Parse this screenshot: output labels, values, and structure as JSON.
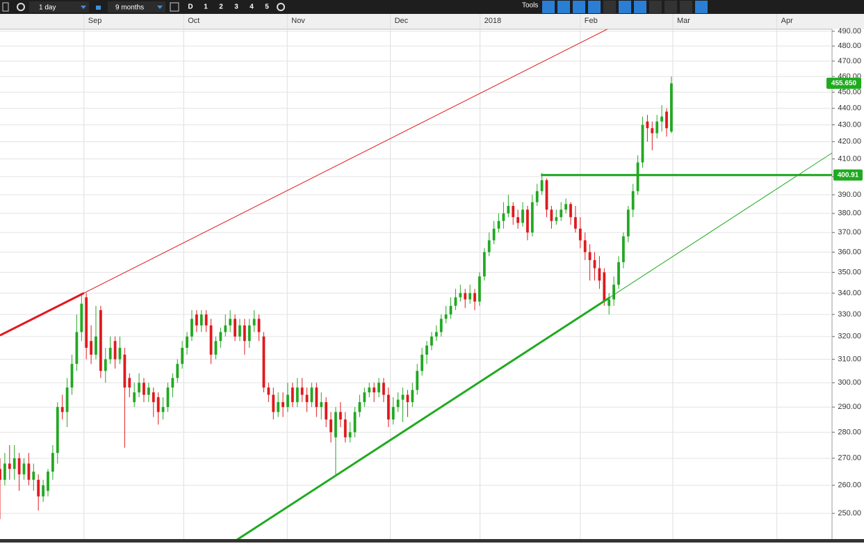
{
  "toolbar": {
    "interval": "1 day",
    "range": "9 months",
    "buttons": [
      "D",
      "1",
      "2",
      "3",
      "4",
      "5"
    ],
    "tools": "Tools"
  },
  "chart_data": {
    "type": "candlestick",
    "up_color": "#22a822",
    "down_color": "#e0191d",
    "log_scale": true,
    "grid": true,
    "xlim": [
      0,
      173.5
    ],
    "xticks": [
      {
        "value": 17.5,
        "label": "Sep"
      },
      {
        "value": 38.3,
        "label": "Oct"
      },
      {
        "value": 59.9,
        "label": "Nov"
      },
      {
        "value": 81.4,
        "label": "Dec"
      },
      {
        "value": 100.1,
        "label": "2018"
      },
      {
        "value": 121,
        "label": "Feb"
      },
      {
        "value": 140.3,
        "label": "Mar"
      },
      {
        "value": 162,
        "label": "Apr"
      }
    ],
    "ylim": [
      241.2,
      491.4
    ],
    "yticks": [
      {
        "value": 250,
        "label": "250.00"
      },
      {
        "value": 260,
        "label": "260.00"
      },
      {
        "value": 270,
        "label": "270.00"
      },
      {
        "value": 280,
        "label": "280.00"
      },
      {
        "value": 290,
        "label": "290.00"
      },
      {
        "value": 300,
        "label": "300.00"
      },
      {
        "value": 310,
        "label": "310.00"
      },
      {
        "value": 320,
        "label": "320.00"
      },
      {
        "value": 330,
        "label": "330.00"
      },
      {
        "value": 340,
        "label": "340.00"
      },
      {
        "value": 350,
        "label": "350.00"
      },
      {
        "value": 360,
        "label": "360.00"
      },
      {
        "value": 370,
        "label": "370.00"
      },
      {
        "value": 380,
        "label": "380.00"
      },
      {
        "value": 390,
        "label": "390.00"
      },
      {
        "value": 400,
        "label": "400.00"
      },
      {
        "value": 410,
        "label": "410.00"
      },
      {
        "value": 420,
        "label": "420.00"
      },
      {
        "value": 430,
        "label": "430.00"
      },
      {
        "value": 440,
        "label": "440.00"
      },
      {
        "value": 450,
        "label": "450.00"
      },
      {
        "value": 460,
        "label": "460.00"
      },
      {
        "value": 470,
        "label": "470.00"
      },
      {
        "value": 480,
        "label": "480.00"
      },
      {
        "value": 490,
        "label": "490.00"
      }
    ],
    "ohlc": [
      [
        266,
        270,
        248,
        262
      ],
      [
        262,
        272,
        260,
        268
      ],
      [
        268,
        275,
        262,
        266
      ],
      [
        266,
        275,
        262,
        270
      ],
      [
        270,
        272,
        258,
        264
      ],
      [
        264,
        270,
        262,
        268
      ],
      [
        268,
        272,
        260,
        262
      ],
      [
        262,
        268,
        258,
        265
      ],
      [
        262,
        264,
        251,
        256
      ],
      [
        256,
        262,
        254,
        260
      ],
      [
        258,
        266,
        256,
        265
      ],
      [
        265,
        275,
        262,
        272
      ],
      [
        272,
        292,
        268,
        290
      ],
      [
        290,
        295,
        285,
        288
      ],
      [
        288,
        302,
        282,
        298
      ],
      [
        298,
        312,
        295,
        308
      ],
      [
        308,
        330,
        305,
        322
      ],
      [
        322,
        340,
        318,
        335
      ],
      [
        338,
        340,
        310,
        315
      ],
      [
        318,
        325,
        308,
        312
      ],
      [
        312,
        334,
        310,
        320
      ],
      [
        332,
        334,
        302,
        305
      ],
      [
        305,
        315,
        300,
        310
      ],
      [
        310,
        320,
        308,
        315
      ],
      [
        318,
        320,
        306,
        310
      ],
      [
        310,
        320,
        308,
        315
      ],
      [
        312,
        315,
        274,
        298
      ],
      [
        302,
        304,
        294,
        298
      ],
      [
        292,
        300,
        290,
        296
      ],
      [
        296,
        304,
        294,
        300
      ],
      [
        300,
        302,
        292,
        295
      ],
      [
        295,
        300,
        292,
        298
      ],
      [
        296,
        298,
        286,
        292
      ],
      [
        294,
        296,
        283,
        288
      ],
      [
        288,
        294,
        285,
        290
      ],
      [
        290,
        300,
        288,
        298
      ],
      [
        298,
        304,
        294,
        302
      ],
      [
        302,
        310,
        300,
        308
      ],
      [
        308,
        318,
        306,
        315
      ],
      [
        315,
        322,
        312,
        320
      ],
      [
        320,
        332,
        318,
        328
      ],
      [
        330,
        332,
        322,
        325
      ],
      [
        325,
        332,
        322,
        330
      ],
      [
        330,
        332,
        322,
        325
      ],
      [
        325,
        328,
        308,
        312
      ],
      [
        312,
        320,
        310,
        318
      ],
      [
        318,
        324,
        315,
        322
      ],
      [
        322,
        330,
        320,
        325
      ],
      [
        325,
        332,
        322,
        328
      ],
      [
        328,
        330,
        318,
        320
      ],
      [
        320,
        328,
        318,
        325
      ],
      [
        325,
        328,
        312,
        318
      ],
      [
        318,
        328,
        315,
        325
      ],
      [
        325,
        332,
        322,
        328
      ],
      [
        328,
        330,
        318,
        322
      ],
      [
        320,
        322,
        296,
        298
      ],
      [
        298,
        300,
        292,
        295
      ],
      [
        295,
        298,
        285,
        288
      ],
      [
        288,
        296,
        286,
        292
      ],
      [
        292,
        296,
        286,
        290
      ],
      [
        290,
        300,
        288,
        295
      ],
      [
        298,
        300,
        290,
        292
      ],
      [
        292,
        302,
        290,
        298
      ],
      [
        298,
        302,
        292,
        295
      ],
      [
        295,
        298,
        288,
        292
      ],
      [
        292,
        300,
        290,
        298
      ],
      [
        298,
        300,
        286,
        290
      ],
      [
        290,
        296,
        285,
        292
      ],
      [
        292,
        294,
        282,
        285
      ],
      [
        285,
        288,
        276,
        280
      ],
      [
        278,
        290,
        264,
        288
      ],
      [
        288,
        292,
        282,
        285
      ],
      [
        285,
        288,
        276,
        278
      ],
      [
        278,
        284,
        276,
        280
      ],
      [
        280,
        290,
        278,
        288
      ],
      [
        288,
        295,
        286,
        292
      ],
      [
        292,
        298,
        290,
        296
      ],
      [
        296,
        300,
        294,
        298
      ],
      [
        298,
        300,
        292,
        296
      ],
      [
        296,
        302,
        294,
        300
      ],
      [
        300,
        302,
        292,
        295
      ],
      [
        295,
        298,
        282,
        285
      ],
      [
        285,
        294,
        283,
        290
      ],
      [
        290,
        296,
        288,
        293
      ],
      [
        293,
        298,
        284,
        295
      ],
      [
        295,
        297,
        286,
        292
      ],
      [
        292,
        300,
        290,
        297
      ],
      [
        297,
        308,
        295,
        305
      ],
      [
        305,
        315,
        303,
        312
      ],
      [
        312,
        318,
        308,
        316
      ],
      [
        316,
        322,
        314,
        320
      ],
      [
        320,
        325,
        318,
        322
      ],
      [
        322,
        330,
        320,
        328
      ],
      [
        328,
        334,
        326,
        330
      ],
      [
        330,
        338,
        328,
        334
      ],
      [
        334,
        342,
        332,
        338
      ],
      [
        338,
        344,
        336,
        340
      ],
      [
        340,
        342,
        333,
        337
      ],
      [
        337,
        344,
        335,
        340
      ],
      [
        340,
        342,
        332,
        336
      ],
      [
        336,
        350,
        334,
        348
      ],
      [
        348,
        362,
        346,
        360
      ],
      [
        360,
        370,
        358,
        366
      ],
      [
        366,
        376,
        364,
        372
      ],
      [
        372,
        380,
        370,
        376
      ],
      [
        376,
        386,
        372,
        380
      ],
      [
        380,
        390,
        378,
        384
      ],
      [
        384,
        386,
        374,
        378
      ],
      [
        378,
        382,
        372,
        375
      ],
      [
        375,
        386,
        373,
        382
      ],
      [
        382,
        384,
        366,
        370
      ],
      [
        370,
        390,
        368,
        386
      ],
      [
        386,
        396,
        384,
        392
      ],
      [
        392,
        402,
        390,
        398
      ],
      [
        398,
        399,
        378,
        382
      ],
      [
        382,
        384,
        372,
        376
      ],
      [
        376,
        382,
        374,
        378
      ],
      [
        378,
        386,
        376,
        382
      ],
      [
        382,
        388,
        380,
        385
      ],
      [
        385,
        386,
        374,
        378
      ],
      [
        378,
        384,
        370,
        372
      ],
      [
        372,
        378,
        362,
        366
      ],
      [
        366,
        370,
        356,
        360
      ],
      [
        360,
        364,
        346,
        356
      ],
      [
        356,
        360,
        346,
        352
      ],
      [
        352,
        358,
        342,
        346
      ],
      [
        350,
        352,
        334,
        336
      ],
      [
        334,
        340,
        330,
        337
      ],
      [
        337,
        348,
        334,
        344
      ],
      [
        344,
        358,
        342,
        355
      ],
      [
        355,
        370,
        352,
        368
      ],
      [
        368,
        384,
        365,
        382
      ],
      [
        382,
        396,
        378,
        392
      ],
      [
        392,
        412,
        390,
        408
      ],
      [
        408,
        435,
        405,
        430
      ],
      [
        432,
        436,
        420,
        428
      ],
      [
        428,
        432,
        415,
        425
      ],
      [
        425,
        436,
        422,
        432
      ],
      [
        432,
        442,
        426,
        435
      ],
      [
        438,
        440,
        423,
        428
      ],
      [
        426,
        460,
        425,
        455.65
      ]
    ],
    "trendlines": [
      {
        "color": "#e0191d",
        "points": [
          [
            0,
            320.5
          ],
          [
            17.5,
            340
          ]
        ]
      },
      {
        "color": "#1faa1f",
        "points": [
          [
            48.5,
            240
          ],
          [
            127.2,
            338
          ]
        ]
      }
    ],
    "level": {
      "value": 400.91,
      "label": "400.91",
      "start": 112.8,
      "color": "#1faa1f"
    },
    "last_price": {
      "value": 455.65,
      "label": "455.650",
      "color": "#1faa1f"
    }
  }
}
